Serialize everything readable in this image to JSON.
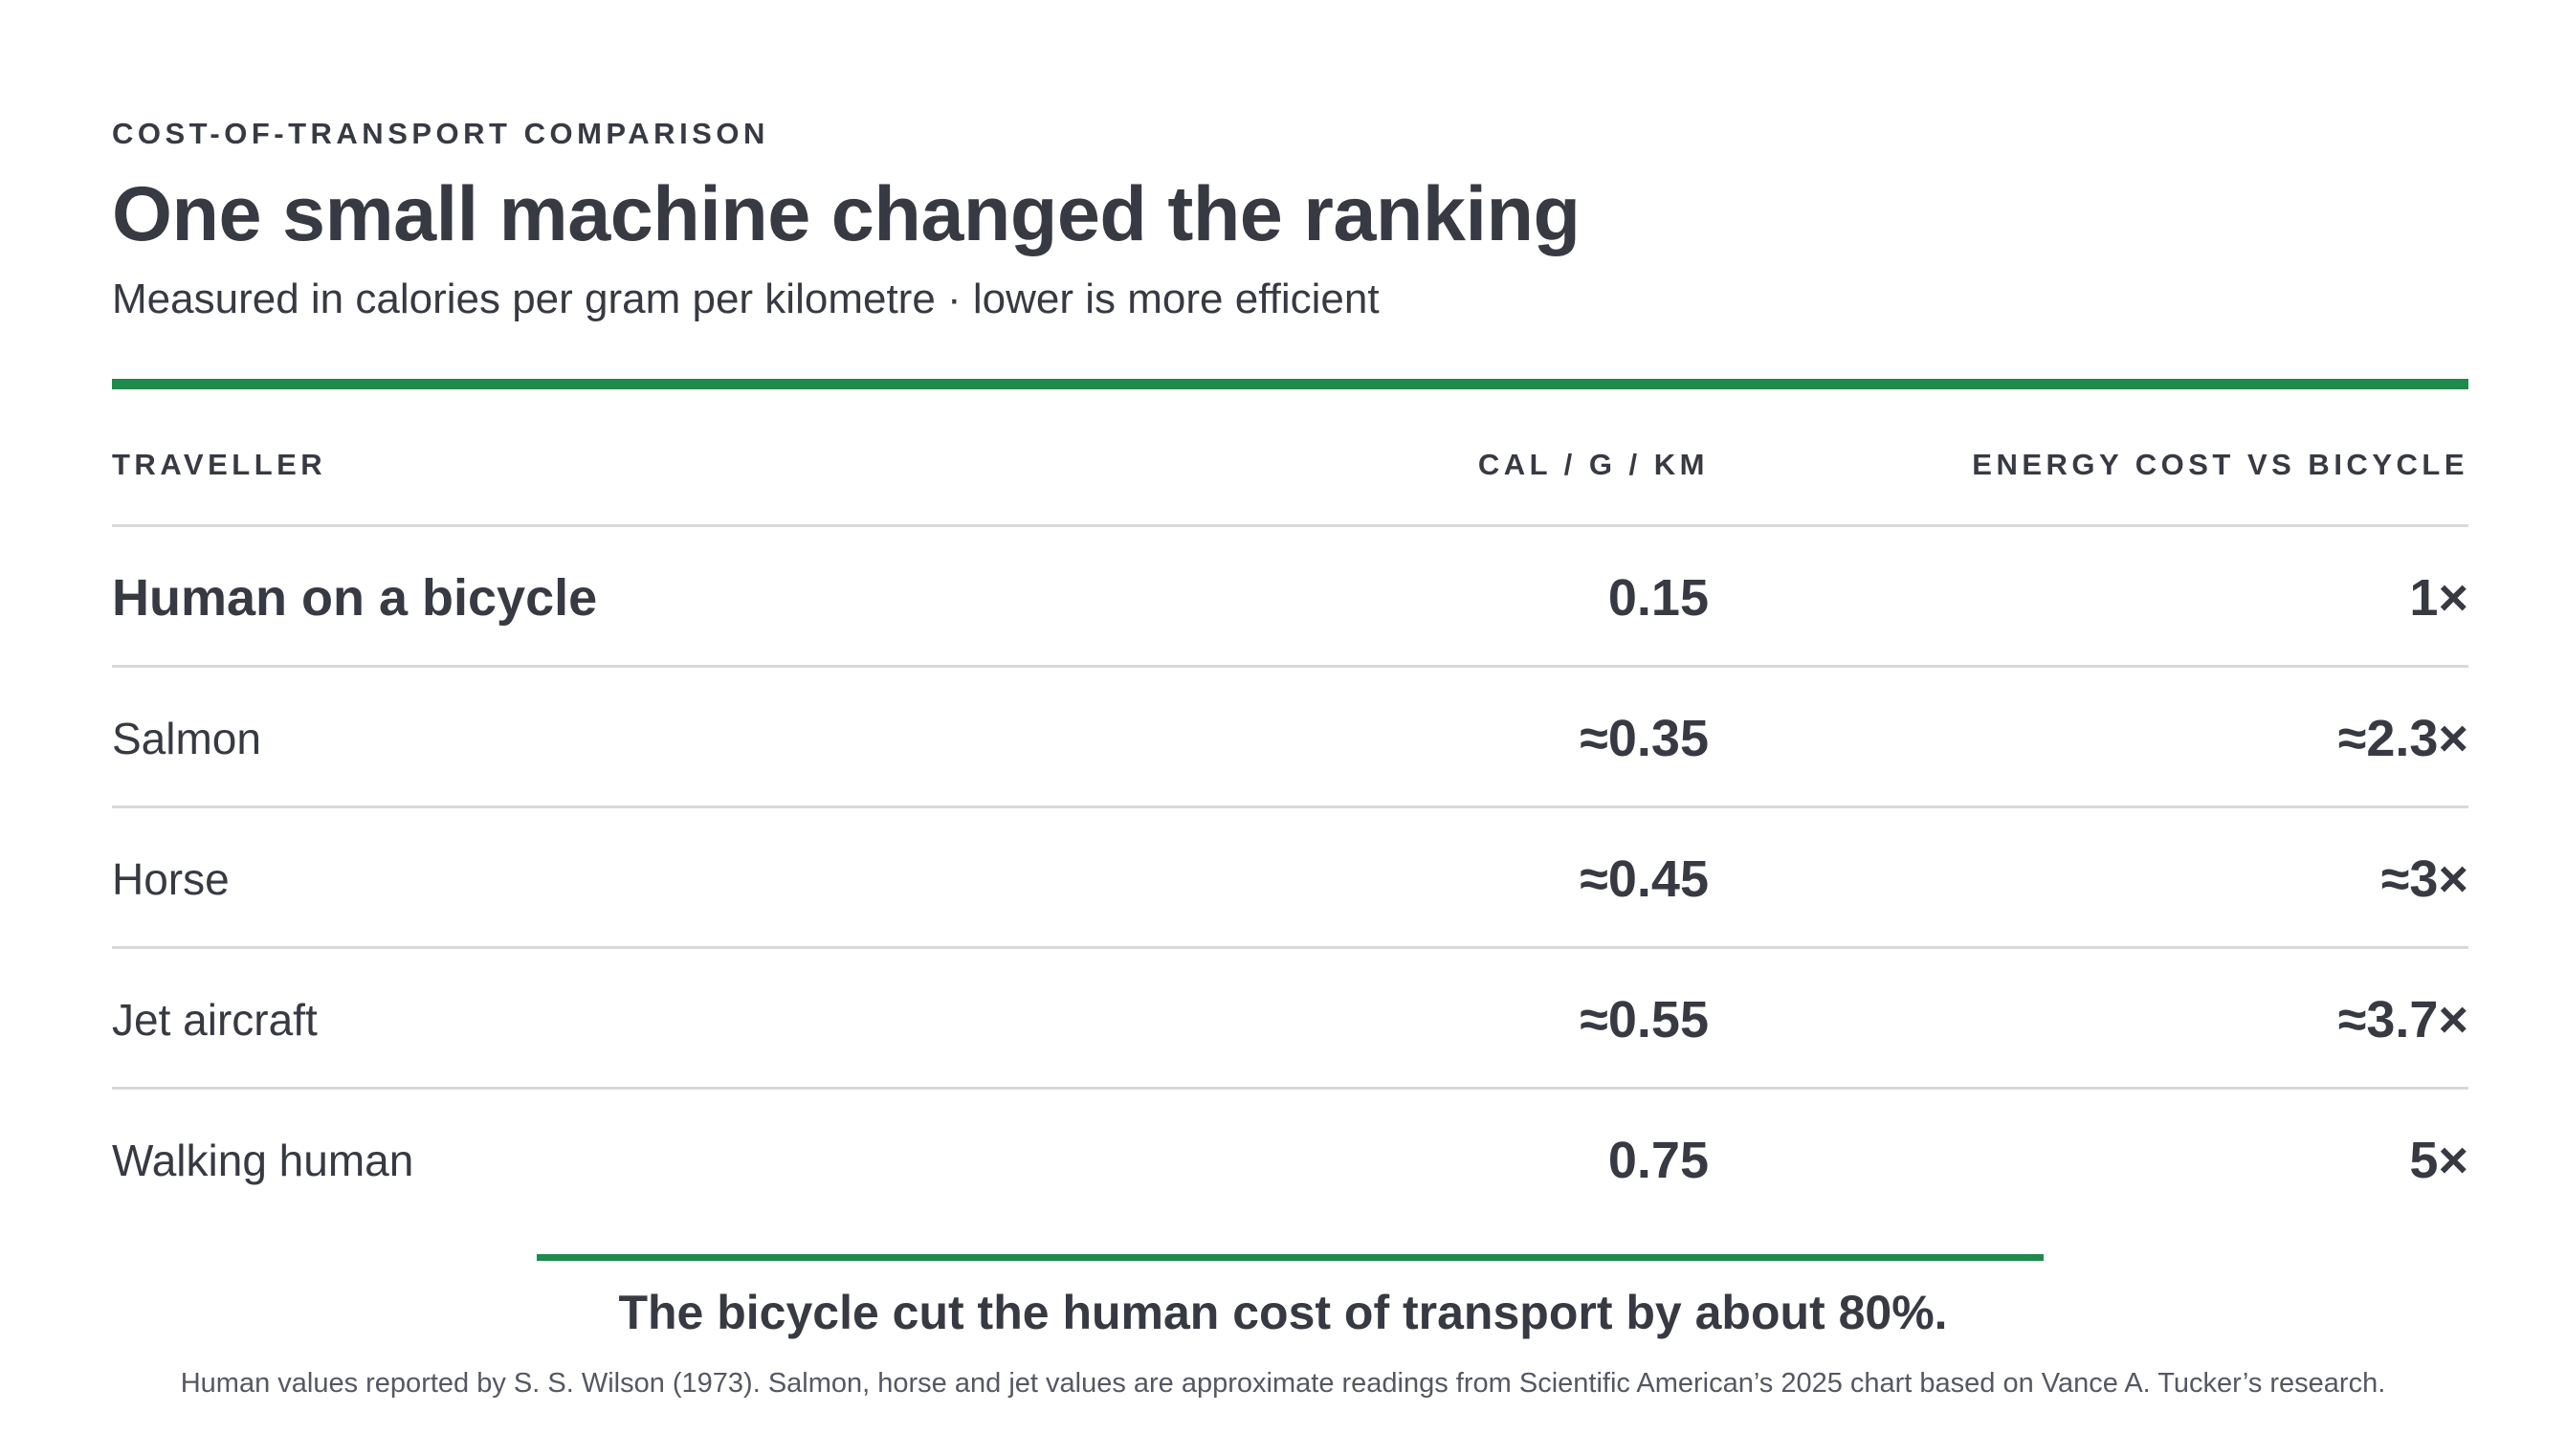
{
  "header": {
    "eyebrow": "COST-OF-TRANSPORT COMPARISON",
    "title": "One small machine changed the ranking",
    "subtitle": "Measured in calories per gram per kilometre · lower is more efficient"
  },
  "colors": {
    "accent": "#1f8a4c",
    "text": "#373a42",
    "divider": "#d9d9d9"
  },
  "chart_data": {
    "type": "table",
    "title": "One small machine changed the ranking",
    "columns": [
      "TRAVELLER",
      "CAL / G / KM",
      "ENERGY COST VS BICYCLE"
    ],
    "rows": [
      {
        "traveller": "Human on a bicycle",
        "cal": "0.15",
        "vs": "1×",
        "cal_value": 0.15,
        "ratio": 1,
        "highlight": true
      },
      {
        "traveller": "Salmon",
        "cal": "≈0.35",
        "vs": "≈2.3×",
        "cal_value": 0.35,
        "ratio": 2.3,
        "highlight": false
      },
      {
        "traveller": "Horse",
        "cal": "≈0.45",
        "vs": "≈3×",
        "cal_value": 0.45,
        "ratio": 3,
        "highlight": false
      },
      {
        "traveller": "Jet aircraft",
        "cal": "≈0.55",
        "vs": "≈3.7×",
        "cal_value": 0.55,
        "ratio": 3.7,
        "highlight": false
      },
      {
        "traveller": "Walking human",
        "cal": "0.75",
        "vs": "5×",
        "cal_value": 0.75,
        "ratio": 5,
        "highlight": false
      }
    ]
  },
  "footer": {
    "takeaway": "The bicycle cut the human cost of transport by about 80%.",
    "source": "Human values reported by S. S. Wilson (1973). Salmon, horse and jet values are approximate readings from Scientific American’s 2025 chart based on Vance A. Tucker’s research."
  }
}
